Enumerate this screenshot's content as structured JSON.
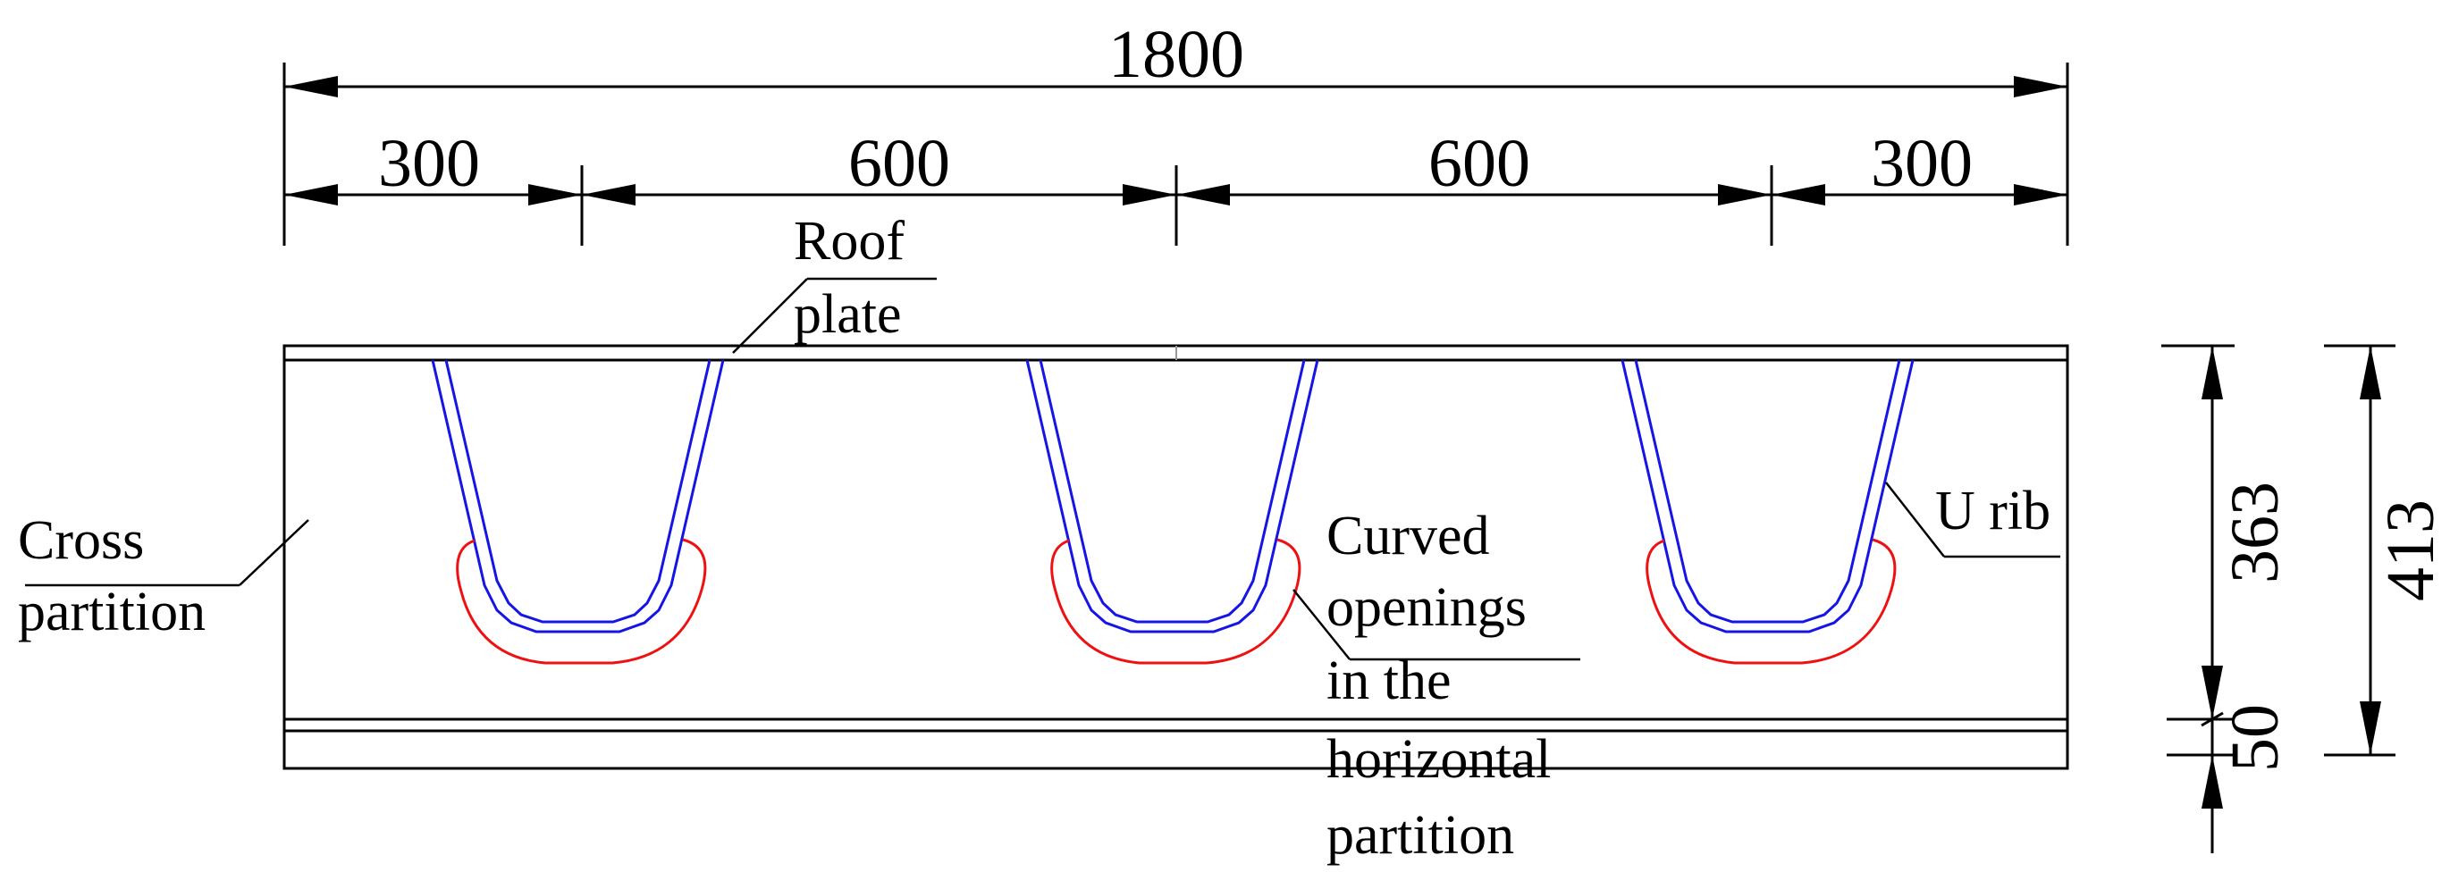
{
  "dimensions": {
    "total_width": "1800",
    "segment_1": "300",
    "segment_2": "600",
    "segment_3": "600",
    "segment_4": "300",
    "rib_height": "363",
    "partition_depth": "50",
    "total_height": "413"
  },
  "labels": {
    "roof_plate": [
      "Roof",
      "plate"
    ],
    "cross_partition": [
      "Cross",
      "partition"
    ],
    "u_rib": "U rib",
    "curved_openings": [
      "Curved",
      "openings",
      "in the",
      "horizontal",
      "partition"
    ]
  },
  "colors": {
    "line": "#000000",
    "u_rib": "#1515e6",
    "curved_opening": "#ee1111"
  }
}
